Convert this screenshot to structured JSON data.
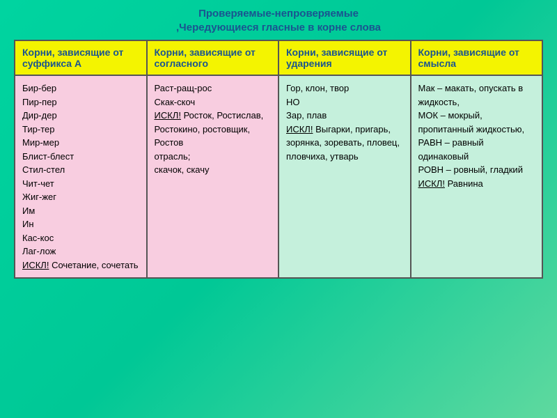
{
  "title_line1": "Проверяемые-непроверяемые",
  "title_line2": ",Чередующиеся гласные в корне слова",
  "headers": {
    "col1": "Корни, зависящие от суффикса А",
    "col2": "Корни, зависящие от согласного",
    "col3": "Корни, зависящие от ударения",
    "col4": "Корни, зависящие от смысла"
  },
  "col1_content": {
    "line1": "Бир-бер",
    "line2": "Пир-пер",
    "line3": "Дир-дер",
    "line4": "Тир-тер",
    "line5": "Мир-мер",
    "line6": "Блист-блест",
    "line7": "Стил-стел",
    "line8": "Чит-чет",
    "line9": "Жиг-жег",
    "line10": "Им",
    "line11": "Ин",
    "line12": "Кас-кос",
    "line13": "Лаг-лож",
    "excl_label": "ИСКЛ!",
    "excl_text": " Сочетание, сочетать"
  },
  "col2_content": {
    "line1": "Раст-ращ-рос",
    "line2": "Скак-скоч",
    "excl_label": "ИСКЛ!",
    "excl_text1": " Росток, Ростислав, Ростокино, ростовщик, Ростов",
    "line3": "отрасль;",
    "line4": "скачок, скачу"
  },
  "col3_content": {
    "line1": "Гор, клон, твор",
    "line2": "НО",
    "line3": "Зар, плав",
    "excl_label": "ИСКЛ!",
    "excl_text": " Выгарки, пригарь, зорянка, зоревать, пловец, пловчиха, утварь"
  },
  "col4_content": {
    "line1": "Мак – макать, опускать в жидкость,",
    "line2": "МОК – мокрый, пропитанный жидкостью,",
    "line3": "РАВН – равный одинаковый",
    "line4": "РОВН – ровный, гладкий",
    "excl_label": "ИСКЛ!",
    "excl_text": " Равнина"
  },
  "colors": {
    "header_bg": "#f4f400",
    "header_text": "#1a5490",
    "col12_bg": "#f8cde0",
    "col34_bg": "#c5f0dc",
    "body_gradient_start": "#00d4a0",
    "body_gradient_end": "#5fd99f",
    "border": "#555555"
  },
  "fonts": {
    "title_size": 15,
    "header_size": 14,
    "cell_size": 13
  }
}
